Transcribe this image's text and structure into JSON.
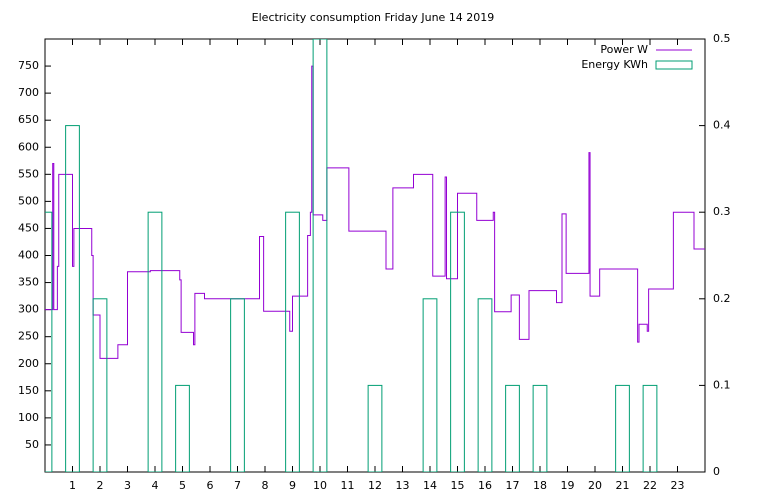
{
  "chart_data": {
    "type": "line",
    "title": "Electricity consumption Friday June 14 2019",
    "xlim": [
      0,
      24
    ],
    "xticks": [
      1,
      2,
      3,
      4,
      5,
      6,
      7,
      8,
      9,
      10,
      11,
      12,
      13,
      14,
      15,
      16,
      17,
      18,
      19,
      20,
      21,
      22,
      23
    ],
    "ylim": [
      0,
      800
    ],
    "yticks": [
      50,
      100,
      150,
      200,
      250,
      300,
      350,
      400,
      450,
      500,
      550,
      600,
      650,
      700,
      750
    ],
    "y2lim": [
      0,
      0.5
    ],
    "y2ticks": [
      0,
      0.1,
      0.2,
      0.3,
      0.4,
      0.5
    ],
    "legend": "top-right",
    "series": [
      {
        "name": "Power W",
        "type": "line",
        "axis": "y",
        "color": "#9400d3",
        "x": [
          0,
          0.28,
          0.28,
          0.32,
          0.32,
          0.45,
          0.45,
          0.5,
          0.5,
          1.0,
          1.0,
          1.05,
          1.05,
          1.7,
          1.7,
          1.75,
          1.75,
          2.0,
          2.0,
          2.65,
          2.65,
          3.0,
          3.0,
          3.83,
          3.83,
          4.9,
          4.9,
          4.95,
          4.95,
          5.4,
          5.4,
          5.45,
          5.45,
          5.8,
          5.8,
          7.8,
          7.8,
          7.95,
          7.95,
          8.9,
          8.9,
          9.0,
          9.0,
          9.55,
          9.55,
          9.65,
          9.65,
          9.7,
          9.7,
          9.75,
          9.75,
          10.1,
          10.1,
          10.25,
          10.25,
          11.05,
          11.05,
          12.4,
          12.4,
          12.65,
          12.65,
          13.4,
          13.4,
          14.1,
          14.1,
          14.55,
          14.55,
          14.6,
          14.6,
          15.0,
          15.0,
          15.7,
          15.7,
          16.3,
          16.3,
          16.35,
          16.35,
          16.95,
          16.95,
          17.25,
          17.25,
          17.6,
          17.6,
          18.6,
          18.6,
          18.8,
          18.8,
          18.95,
          18.95,
          19.78,
          19.78,
          19.82,
          19.82,
          20.17,
          20.17,
          21.55,
          21.55,
          21.6,
          21.6,
          21.9,
          21.9,
          21.95,
          21.95,
          22.85,
          22.85,
          23.6,
          23.6,
          24
        ],
        "values": [
          300,
          300,
          570,
          570,
          300,
          300,
          380,
          380,
          550,
          550,
          380,
          380,
          450,
          450,
          400,
          400,
          290,
          290,
          210,
          210,
          235,
          235,
          370,
          370,
          372,
          372,
          355,
          355,
          258,
          258,
          235,
          235,
          330,
          330,
          320,
          320,
          435,
          435,
          297,
          297,
          260,
          260,
          325,
          325,
          437,
          437,
          480,
          480,
          750,
          750,
          475,
          475,
          465,
          465,
          562,
          562,
          445,
          445,
          375,
          375,
          525,
          525,
          550,
          550,
          362,
          362,
          545,
          545,
          357,
          357,
          515,
          515,
          465,
          465,
          480,
          480,
          296,
          296,
          327,
          327,
          245,
          245,
          335,
          335,
          313,
          313,
          477,
          477,
          367,
          367,
          590,
          590,
          325,
          325,
          375,
          375,
          240,
          240,
          273,
          273,
          260,
          260,
          338,
          338,
          480,
          480,
          412,
          412
        ]
      },
      {
        "name": "Energy KWh",
        "type": "bar",
        "axis": "y2",
        "color": "#009e73",
        "bar_width": 0.5,
        "x": [
          0,
          1,
          2,
          3,
          4,
          5,
          6,
          7,
          8,
          9,
          10,
          11,
          12,
          13,
          14,
          15,
          16,
          17,
          18,
          19,
          20,
          21,
          22,
          23
        ],
        "values": [
          0.3,
          0.4,
          0.2,
          0,
          0.3,
          0.1,
          0,
          0.2,
          0,
          0.3,
          0.5,
          0,
          0.1,
          0,
          0.2,
          0.3,
          0.2,
          0.1,
          0.1,
          0,
          0,
          0.1,
          0.1,
          0
        ]
      }
    ]
  }
}
